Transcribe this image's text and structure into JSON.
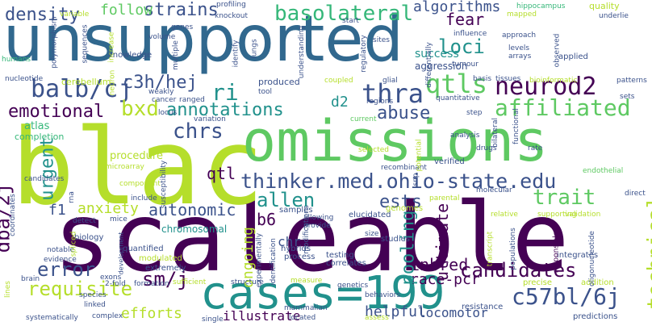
{
  "palette": {
    "purple": "#440154",
    "indigo": "#3b528b",
    "teal": "#21918c",
    "green": "#5ec962",
    "lime": "#b5de2b",
    "yellow": "#fde725",
    "blue": "#31688e",
    "seagreen": "#35b779",
    "background": "#ffffff"
  },
  "words": {
    "unsupported": "unsupported",
    "scaleable": "scaleable",
    "blac": "blac",
    "omissions": "omissions",
    "thinker": "thinker.med.ohio-state.edu",
    "cases": "cases=199",
    "balbcj": "balb/cj",
    "strains": "strains",
    "basolateral": "basolateral",
    "algorithms": "algorithms",
    "fear": "fear",
    "loci": "loci",
    "qtls": "qtls",
    "neurod2": "neurod2",
    "affiliated": "affiliated",
    "thra": "thra",
    "c3hhej": "c3h/hej",
    "ri": "ri",
    "annotations": "annotations",
    "emotional": "emotional",
    "bxd": "bxd",
    "chrs": "chrs",
    "abuse": "abuse",
    "d2": "d2",
    "allen": "allen",
    "ests": "ests",
    "trait": "trait",
    "qtl": "qtl",
    "b6": "b6",
    "autonomic": "autonomic",
    "anxiety": "anxiety",
    "f1": "f1",
    "dba2j": "dba/2j",
    "urgent": "urgent",
    "error": "error",
    "requisite": "requisite",
    "smj": "sm/j",
    "c57bl6j": "c57bl/6j",
    "candidates": "candidates",
    "technical": "technical",
    "inbred": "inbred",
    "racepcr": "race-pcr",
    "helpful": "helpful",
    "locomotor": "locomotor",
    "efforts": "efforts",
    "illustrate": "illustrate",
    "pooling": "pooling",
    "ultimate": "ultimate",
    "ongoing": "ongoing",
    "chr": "chr",
    "density": "density",
    "follow": "follow",
    "atlas": "atlas",
    "amygdala": "amygdala",
    "vary": "vary",
    "completion": "completion",
    "procedure": "procedure",
    "chromosomal": "chromosomal",
    "cerebellum": "cerebellum",
    "produced": "produced",
    "success": "success",
    "aggression": "aggression",
    "quality": "quality",
    "mapped": "mapped",
    "hippocampus": "hippocampus",
    "underlie": "underlie",
    "start": "start",
    "profiling": "profiling",
    "knockout": "knockout",
    "variable": "variable",
    "humans": "humans",
    "nucleotide": "nucleotide",
    "polymorphism": "polymorphism",
    "sequences": "sequences",
    "knowledge": "knowledge",
    "increase": "increase",
    "volume": "volume",
    "multiple": "multiple",
    "genes": "genes",
    "identify": "identify",
    "lungs": "lungs",
    "understanding": "understanding",
    "regulatory": "regulatory",
    "differentially": "differentially",
    "sites": "sites",
    "influence": "influence",
    "approach": "approach",
    "observed": "observed",
    "tumour": "tumour",
    "levels": "levels",
    "arrays": "arrays",
    "applied": "applied",
    "glial": "glial",
    "coupled": "coupled",
    "basis": "basis",
    "tissues": "tissues",
    "bioinformatic": "bioinformatic",
    "patterns": "patterns",
    "sets": "sets",
    "quantitative": "quantitative",
    "regions": "regions",
    "step": "step",
    "bilateral": "bilateral",
    "functional": "functional",
    "analysis": "analysis",
    "drugs": "drugs",
    "rate": "rate",
    "endothelial": "endothelial",
    "direct": "direct",
    "validation": "validation",
    "supporting": "supporting",
    "integrates": "integrates",
    "addition": "addition",
    "precise": "precise",
    "oligonucleotide": "oligonucleotide",
    "responsible": "responsible",
    "populations": "populations",
    "transcript": "transcript",
    "predictions": "predictions",
    "resistance": "resistance",
    "relative": "relative",
    "molecular": "molecular",
    "parental": "parental",
    "verified": "verified",
    "recombinant": "recombinant",
    "selected": "selected",
    "potential": "potential",
    "snp": "snp",
    "genomes": "genomes",
    "elucidated": "elucidated",
    "allowing": "allowing",
    "provide": "provide",
    "samples": "samples",
    "hybrids": "hybrids",
    "size": "size",
    "studies": "studies",
    "process": "process",
    "testing": "testing",
    "correlates": "correlates",
    "identification": "identification",
    "experimentally": "experimentally",
    "modifications": "modifications",
    "include": "include",
    "susceptibility": "susceptibility",
    "component": "component",
    "microarray": "microarray",
    "candidates2": "candidates",
    "coordinates": "coordinates",
    "rna": "rna",
    "detect": "detect",
    "mice": "mice",
    "biology": "biology",
    "notable": "notable",
    "evidence": "evidence",
    "brain": "brain",
    "lines": "lines",
    "spliced": "spliced",
    "development": "development",
    "quantified": "quantified",
    "modulated": "modulated",
    "extremely": "extremely",
    "exons": "exons",
    "twofold": "2-fold",
    "formation": "formation",
    "sufficient": "sufficient",
    "structure": "structure",
    "measure": "measure",
    "genetics": "genetics",
    "behaviors": "behaviors",
    "assess": "assess",
    "located": "located",
    "mammalian": "mammalian",
    "single": "single",
    "complex": "complex",
    "linked": "linked",
    "species": "species",
    "systematically": "systematically",
    "cancer": "cancer",
    "ranged": "ranged",
    "neuron": "neuron",
    "locus": "locus",
    "variation": "variation",
    "weakly": "weakly",
    "tool": "tool",
    "current": "current"
  }
}
